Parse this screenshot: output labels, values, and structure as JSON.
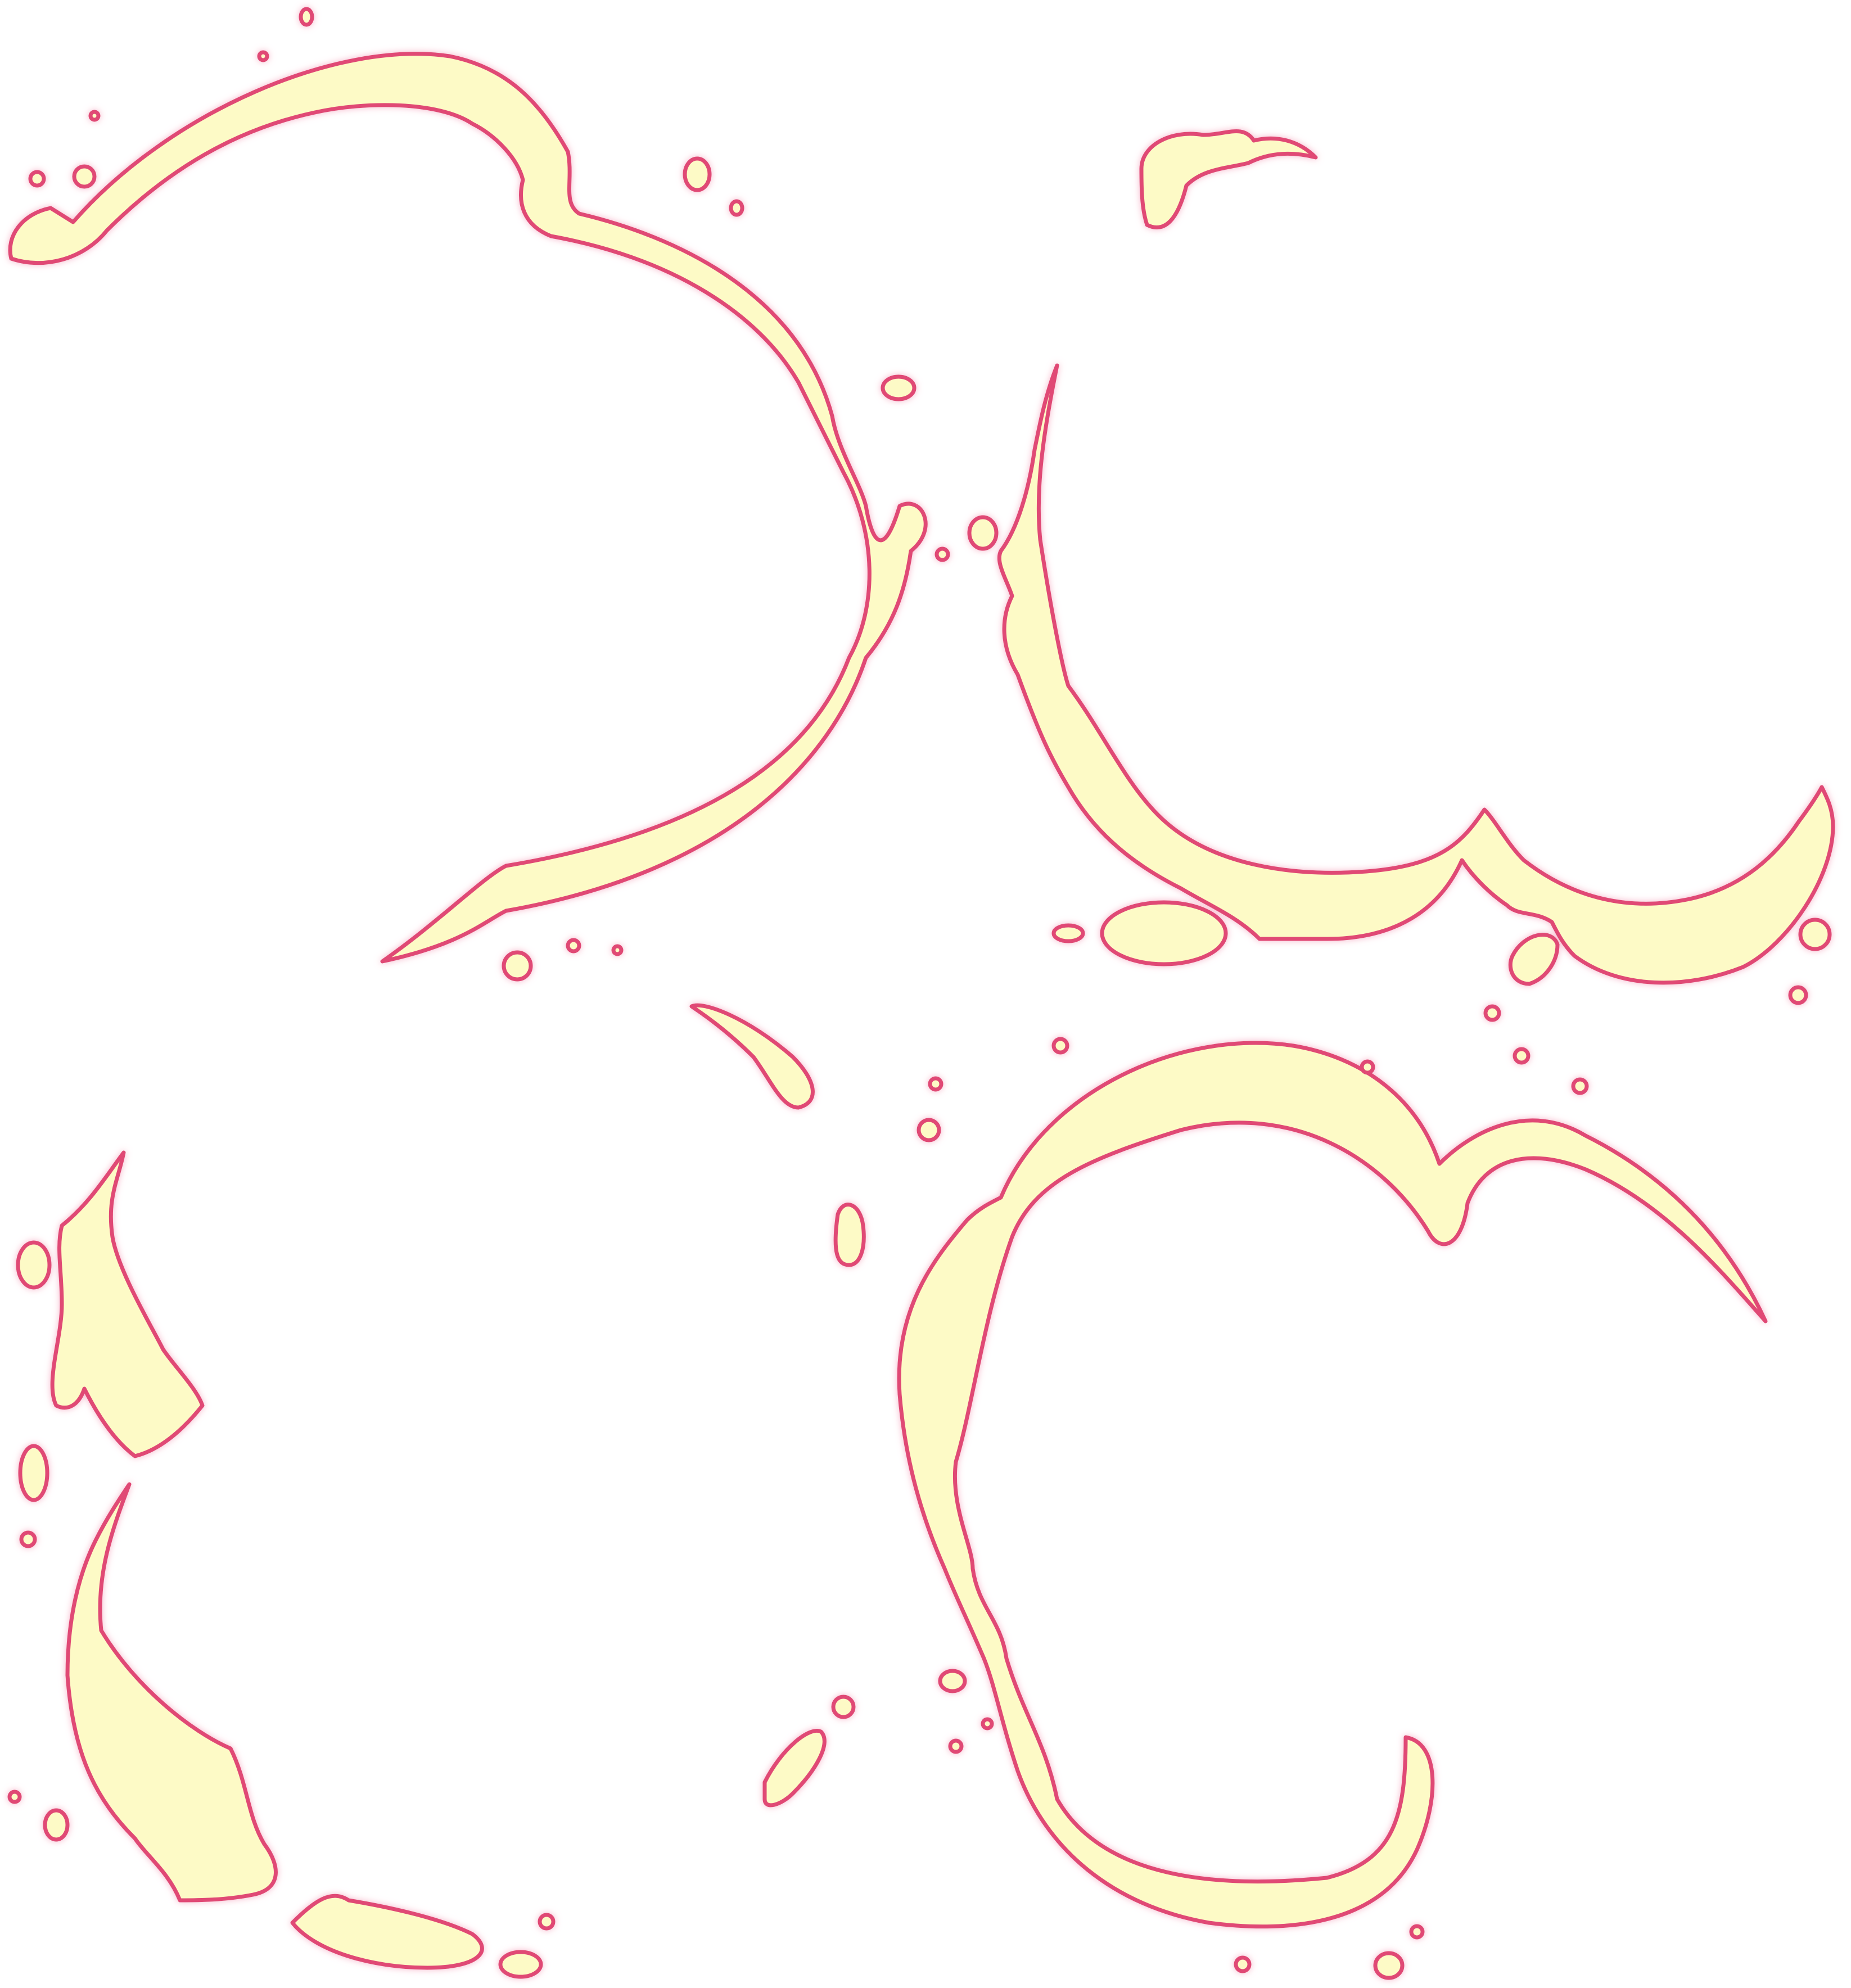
{
  "artwork": {
    "kind": "coffee-ring-stains",
    "background_color": "#ffffff",
    "fill_color": "#fdfac6",
    "stroke_color": "#e04874",
    "glow_color": "#f7b8cc",
    "stain_count": 4
  }
}
